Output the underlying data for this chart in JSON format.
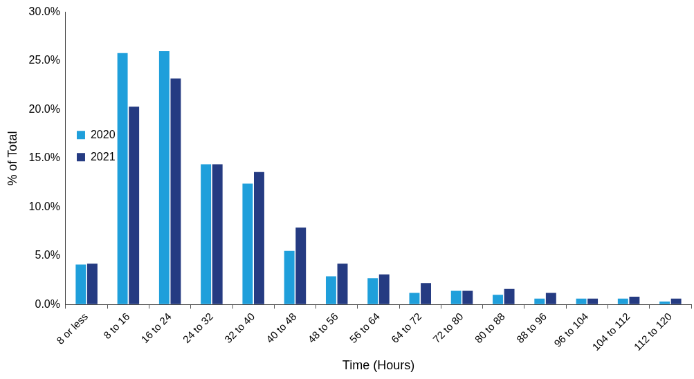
{
  "chart_data": {
    "type": "bar",
    "xlabel": "Time (Hours)",
    "ylabel": "% of Total",
    "categories": [
      "8 or less",
      "8 to 16",
      "16 to 24",
      "24 to 32",
      "32 to 40",
      "40 to 48",
      "48 to 56",
      "56 to 64",
      "64 to 72",
      "72 to 80",
      "80 to 88",
      "88 to 96",
      "96 to 104",
      "104 to 112",
      "112 to 120"
    ],
    "series": [
      {
        "name": "2020",
        "color": "#1f9fdb",
        "values": [
          4.1,
          25.8,
          26.0,
          14.4,
          12.4,
          5.5,
          2.9,
          2.7,
          1.2,
          1.4,
          1.0,
          0.6,
          0.6,
          0.6,
          0.3
        ]
      },
      {
        "name": "2021",
        "color": "#253b82",
        "values": [
          4.2,
          20.3,
          23.2,
          14.4,
          13.6,
          7.9,
          4.2,
          3.1,
          2.2,
          1.4,
          1.6,
          1.2,
          0.6,
          0.8,
          0.6
        ]
      }
    ],
    "ylim": [
      0,
      30
    ],
    "yticks": [
      {
        "value": 0,
        "label": "0.0%"
      },
      {
        "value": 5,
        "label": "5.0%"
      },
      {
        "value": 10,
        "label": "10.0%"
      },
      {
        "value": 15,
        "label": "15.0%"
      },
      {
        "value": 20,
        "label": "20.0%"
      },
      {
        "value": 25,
        "label": "25.0%"
      },
      {
        "value": 30,
        "label": "30.0%"
      }
    ],
    "grid": false,
    "legend": "top"
  }
}
